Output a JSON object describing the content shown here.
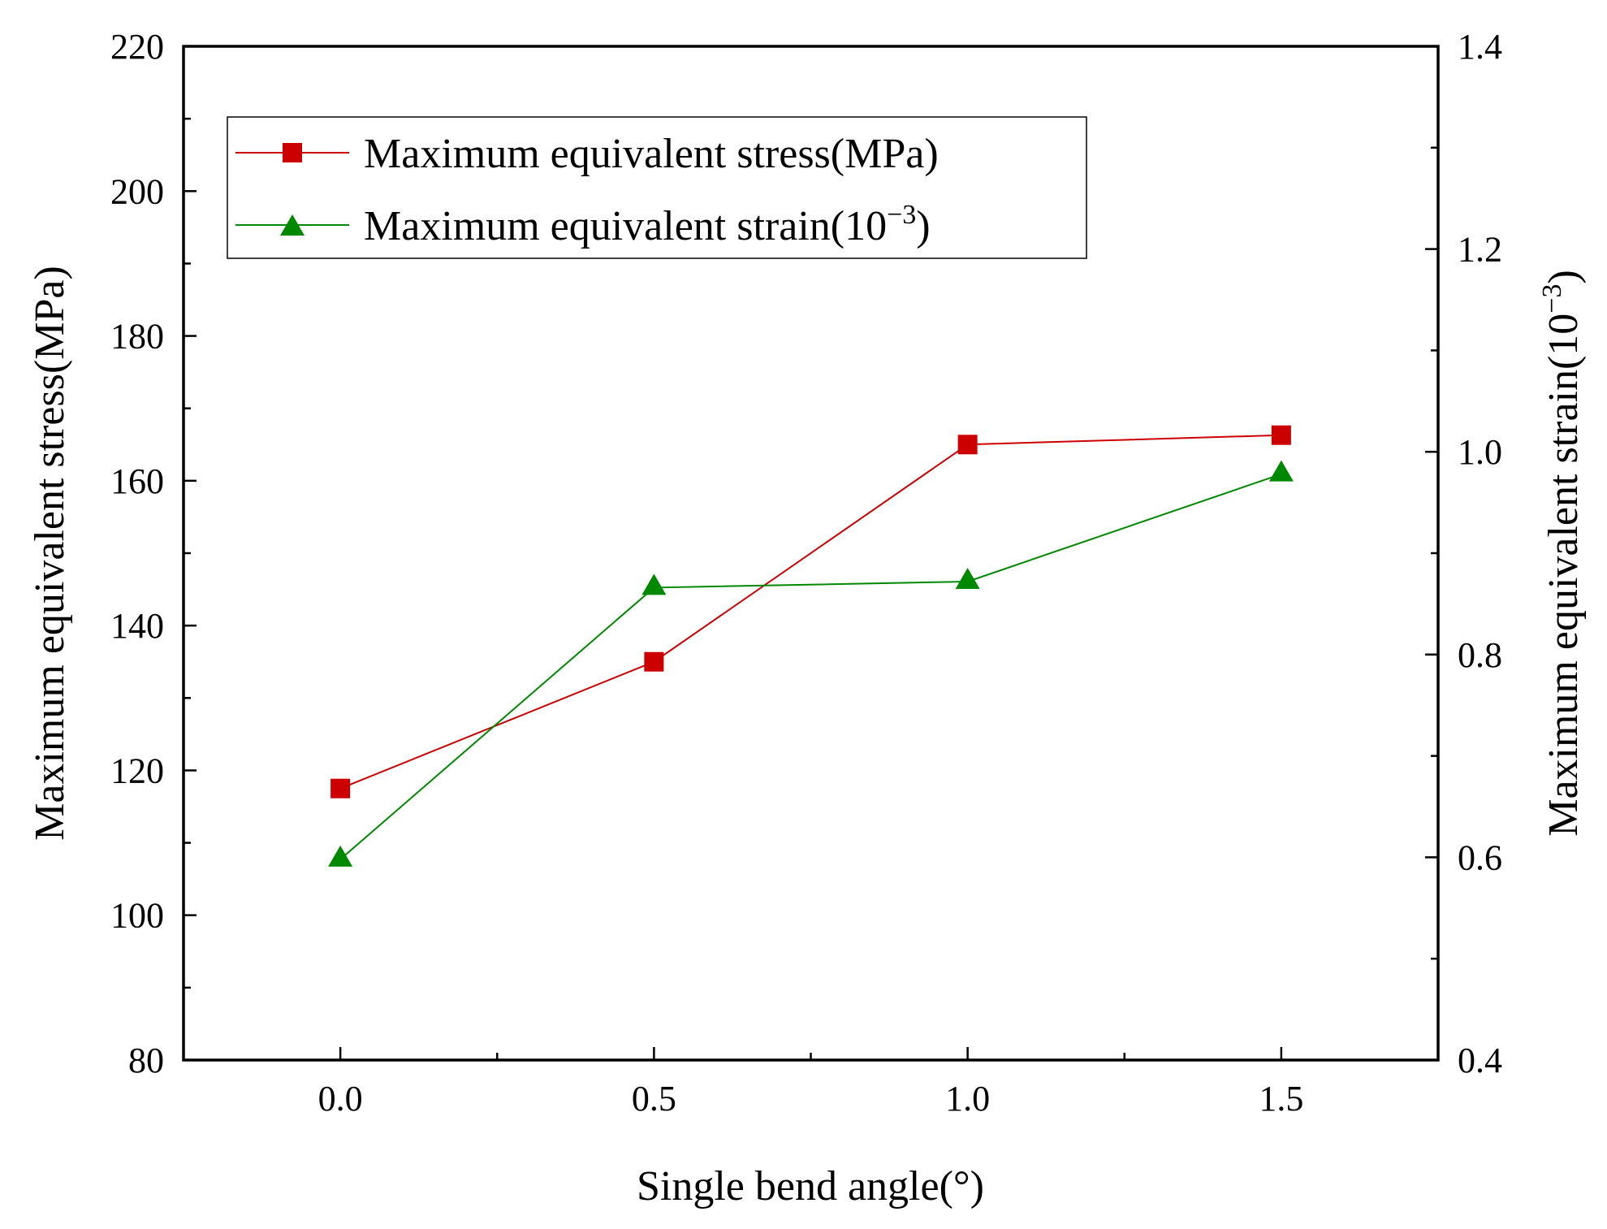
{
  "chart_data": {
    "type": "line",
    "title": "",
    "xlabel": "Single bend angle(°)",
    "ylabel_left": "Maximum equivalent stress(MPa)",
    "ylabel_right_base": "Maximum equivalent strain(10",
    "ylabel_right_exp": "−3",
    "ylabel_right_close": ")",
    "x": [
      0.0,
      0.5,
      1.0,
      1.5
    ],
    "xlim": [
      -0.25,
      1.75
    ],
    "x_ticks": [
      "0.0",
      "0.5",
      "1.0",
      "1.5"
    ],
    "x_tick_values": [
      0.0,
      0.5,
      1.0,
      1.5
    ],
    "ylim_left": [
      80,
      220
    ],
    "y_left_ticks": [
      "80",
      "100",
      "120",
      "140",
      "160",
      "180",
      "200",
      "220"
    ],
    "y_left_tick_values": [
      80,
      100,
      120,
      140,
      160,
      180,
      200,
      220
    ],
    "ylim_right": [
      0.4,
      1.4
    ],
    "y_right_ticks": [
      "0.4",
      "0.6",
      "0.8",
      "1.0",
      "1.2",
      "1.4"
    ],
    "y_right_tick_values": [
      0.4,
      0.6,
      0.8,
      1.0,
      1.2,
      1.4
    ],
    "grid": false,
    "legend_position": "top-left",
    "series": [
      {
        "name": "Maximum equivalent stress(MPa)",
        "axis": "left",
        "marker": "square",
        "color": "#cc0000",
        "values": [
          117.5,
          135.0,
          165.0,
          166.3
        ]
      },
      {
        "name_base": "Maximum equivalent strain(10",
        "name_exp": "−3",
        "name_close": ")",
        "axis": "right",
        "marker": "triangle",
        "color": "#008800",
        "values": [
          0.598,
          0.866,
          0.872,
          0.978
        ]
      }
    ]
  }
}
